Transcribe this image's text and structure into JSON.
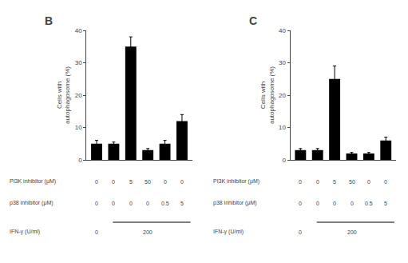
{
  "chart_data": [
    {
      "type": "bar",
      "title": "B",
      "categories": [
        null,
        null,
        null,
        null,
        null,
        null
      ],
      "values": [
        5,
        5,
        35,
        3,
        5,
        12
      ],
      "errors": [
        1,
        0.5,
        3,
        0.5,
        1,
        2
      ],
      "color": "#000000",
      "ylabel": "Cells with\nautophagosome (%)",
      "ylim": [
        0,
        40
      ],
      "yticks": [
        0,
        10,
        20,
        30,
        40
      ],
      "grid": false,
      "tick_labels": "y",
      "annotations": [
        {
          "text": "PI3K inhibitor (μM)",
          "labels": [
            "0",
            "0",
            "5",
            "50",
            "0",
            "0"
          ]
        },
        {
          "text": "p38 inhibitor (μM)",
          "labels": [
            "0",
            "0",
            "0",
            "0",
            "0.5",
            "5"
          ]
        },
        {
          "text": "IFN-γ (U/ml)",
          "labels": [
            "0",
            null,
            null,
            "200",
            null,
            null
          ]
        }
      ]
    },
    {
      "type": "bar",
      "title": "C",
      "categories": [
        null,
        null,
        null,
        null,
        null,
        null
      ],
      "values": [
        3,
        3,
        25,
        2,
        2,
        6
      ],
      "errors": [
        0.5,
        0.5,
        4,
        0.3,
        0.3,
        1
      ],
      "color": "#000000",
      "ylabel": "Cells with\nautophagosome (%)",
      "ylim": [
        0,
        40
      ],
      "yticks": [
        0,
        10,
        20,
        30,
        40
      ],
      "grid": false,
      "tick_labels": "y",
      "annotations": [
        {
          "text": "PI3K inhibitor (μM)",
          "labels": [
            "0",
            "0",
            "5",
            "50",
            "0",
            "0"
          ]
        },
        {
          "text": "p38 inhibitor (μM)",
          "labels": [
            "0",
            "0",
            "0",
            "0",
            "0.5",
            "5"
          ]
        },
        {
          "text": "IFN-γ (U/ml)",
          "labels": [
            "0",
            null,
            null,
            "200",
            null,
            null
          ]
        }
      ]
    }
  ]
}
